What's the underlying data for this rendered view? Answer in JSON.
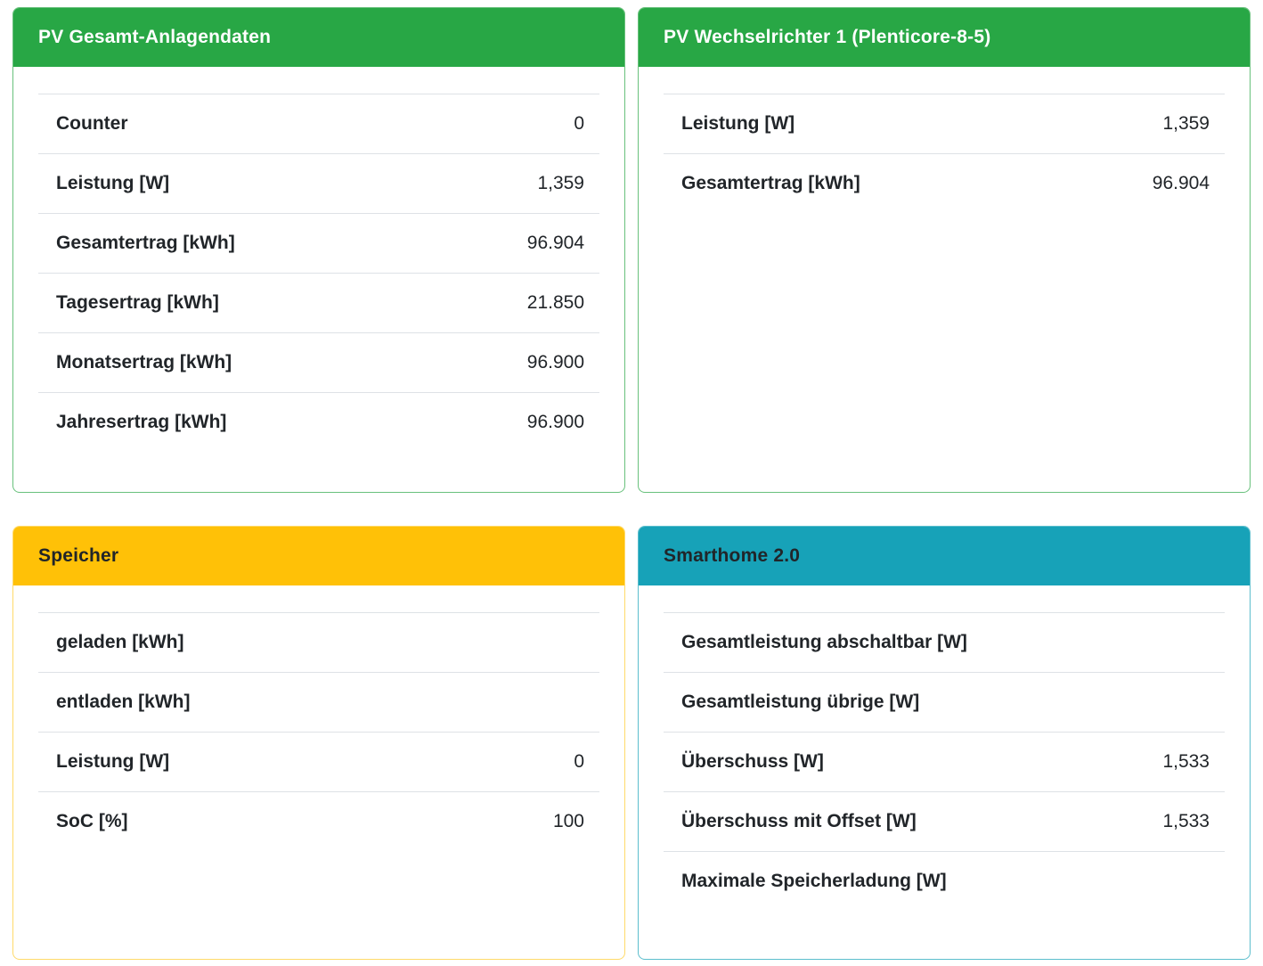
{
  "page": {
    "background": "#ffffff",
    "divider_color": "#dee2e6",
    "text_color": "#212529"
  },
  "cards": [
    {
      "id": "pv-gesamt-anlagendaten",
      "title": "PV Gesamt-Anlagendaten",
      "accent": "#28a745",
      "border": "#28a745b3",
      "header_text_color": "#ffffff",
      "rows": [
        {
          "label": "Counter",
          "value": "0"
        },
        {
          "label": "Leistung [W]",
          "value": "1,359"
        },
        {
          "label": "Gesamtertrag [kWh]",
          "value": "96.904"
        },
        {
          "label": "Tagesertrag [kWh]",
          "value": "21.850"
        },
        {
          "label": "Monatsertrag [kWh]",
          "value": "96.900"
        },
        {
          "label": "Jahresertrag [kWh]",
          "value": "96.900"
        }
      ]
    },
    {
      "id": "pv-wechselrichter-1",
      "title": "PV Wechselrichter 1 (Plenticore-8-5)",
      "accent": "#28a745",
      "border": "#28a745b3",
      "header_text_color": "#ffffff",
      "rows": [
        {
          "label": "Leistung [W]",
          "value": "1,359"
        },
        {
          "label": "Gesamtertrag [kWh]",
          "value": "96.904"
        }
      ]
    },
    {
      "id": "speicher",
      "title": "Speicher",
      "accent": "#ffc107",
      "border": "#ffc10799",
      "header_text_color": "#212529",
      "rows": [
        {
          "label": "geladen [kWh]",
          "value": ""
        },
        {
          "label": "entladen [kWh]",
          "value": ""
        },
        {
          "label": "Leistung [W]",
          "value": "0"
        },
        {
          "label": "SoC [%]",
          "value": "100"
        }
      ]
    },
    {
      "id": "smarthome-2-0",
      "title": "Smarthome 2.0",
      "accent": "#17a2b8",
      "border": "#17a2b8b3",
      "header_text_color": "#212529",
      "rows": [
        {
          "label": "Gesamtleistung abschaltbar [W]",
          "value": ""
        },
        {
          "label": "Gesamtleistung übrige [W]",
          "value": ""
        },
        {
          "label": "Überschuss [W]",
          "value": "1,533"
        },
        {
          "label": "Überschuss mit Offset [W]",
          "value": "1,533"
        },
        {
          "label": "Maximale Speicherladung [W]",
          "value": ""
        }
      ]
    }
  ]
}
